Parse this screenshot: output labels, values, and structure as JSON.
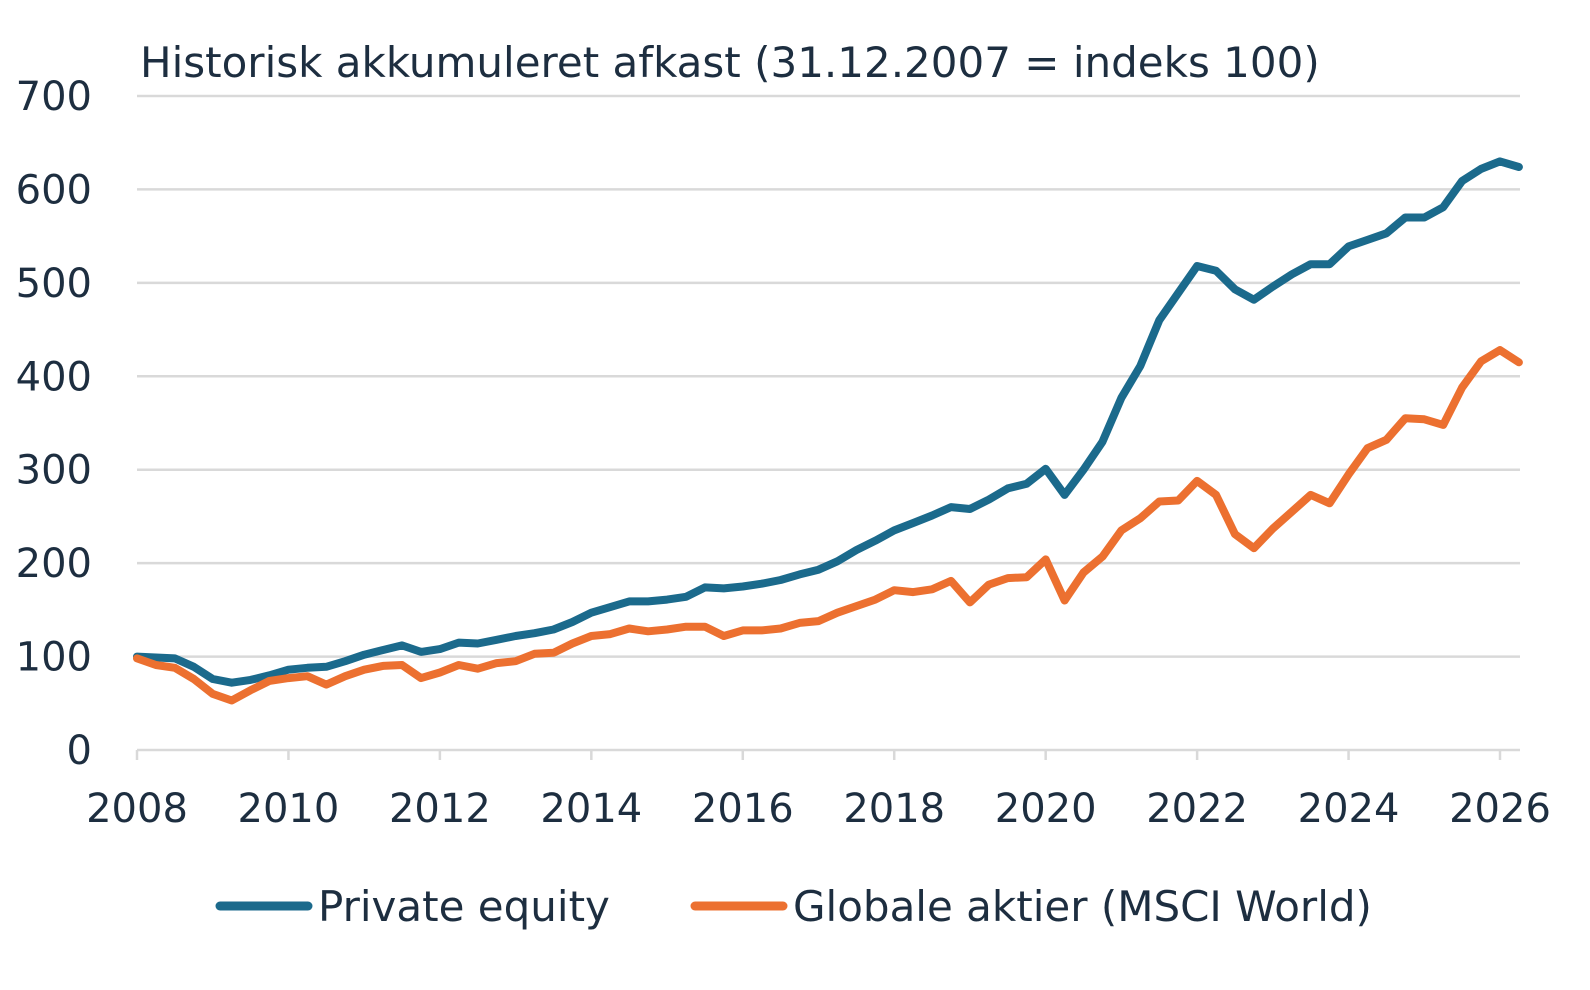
{
  "colors": {
    "private_equity": "#1b6a8c",
    "global_equities": "#ec7030",
    "text": "#1d2e40",
    "grid": "#d9d9d9"
  },
  "chart_data": {
    "type": "line",
    "title": "Historisk akkumuleret afkast (31.12.2007 = indeks 100)",
    "xlabel": "",
    "ylabel": "",
    "xlim": [
      2008,
      2026.15
    ],
    "ylim": [
      0,
      700
    ],
    "x_ticks": [
      "2008",
      "2010",
      "2012",
      "2014",
      "2016",
      "2018",
      "2020",
      "2022",
      "2024",
      "2026"
    ],
    "y_ticks": [
      "0",
      "100",
      "200",
      "300",
      "400",
      "500",
      "600",
      "700"
    ],
    "grid": true,
    "legend_position": "bottom",
    "series": [
      {
        "name": "Private equity",
        "color": "#1b6a8c",
        "points": [
          [
            2008.0,
            100
          ],
          [
            2008.25,
            99
          ],
          [
            2008.5,
            98
          ],
          [
            2008.75,
            89
          ],
          [
            2009.0,
            76
          ],
          [
            2009.25,
            72
          ],
          [
            2009.5,
            75
          ],
          [
            2009.75,
            80
          ],
          [
            2010.0,
            86
          ],
          [
            2010.25,
            88
          ],
          [
            2010.5,
            89
          ],
          [
            2010.75,
            95
          ],
          [
            2011.0,
            102
          ],
          [
            2011.25,
            107
          ],
          [
            2011.5,
            112
          ],
          [
            2011.75,
            105
          ],
          [
            2012.0,
            108
          ],
          [
            2012.25,
            115
          ],
          [
            2012.5,
            114
          ],
          [
            2012.75,
            118
          ],
          [
            2013.0,
            122
          ],
          [
            2013.25,
            125
          ],
          [
            2013.5,
            129
          ],
          [
            2013.75,
            137
          ],
          [
            2014.0,
            147
          ],
          [
            2014.25,
            153
          ],
          [
            2014.5,
            159
          ],
          [
            2014.75,
            159
          ],
          [
            2015.0,
            161
          ],
          [
            2015.25,
            164
          ],
          [
            2015.5,
            174
          ],
          [
            2015.75,
            173
          ],
          [
            2016.0,
            175
          ],
          [
            2016.25,
            178
          ],
          [
            2016.5,
            182
          ],
          [
            2016.75,
            188
          ],
          [
            2017.0,
            193
          ],
          [
            2017.25,
            202
          ],
          [
            2017.5,
            214
          ],
          [
            2017.75,
            224
          ],
          [
            2018.0,
            235
          ],
          [
            2018.25,
            243
          ],
          [
            2018.5,
            251
          ],
          [
            2018.75,
            260
          ],
          [
            2019.0,
            258
          ],
          [
            2019.25,
            268
          ],
          [
            2019.5,
            280
          ],
          [
            2019.75,
            285
          ],
          [
            2020.0,
            301
          ],
          [
            2020.25,
            273
          ],
          [
            2020.5,
            300
          ],
          [
            2020.75,
            330
          ],
          [
            2021.0,
            377
          ],
          [
            2021.25,
            411
          ],
          [
            2021.5,
            460
          ],
          [
            2021.75,
            489
          ],
          [
            2022.0,
            518
          ],
          [
            2022.25,
            513
          ],
          [
            2022.5,
            493
          ],
          [
            2022.75,
            482
          ],
          [
            2023.0,
            496
          ],
          [
            2023.25,
            509
          ],
          [
            2023.5,
            520
          ],
          [
            2023.75,
            520
          ],
          [
            2024.0,
            539
          ],
          [
            2024.25,
            546
          ],
          [
            2024.5,
            553
          ],
          [
            2024.75,
            570
          ],
          [
            2025.0,
            570
          ],
          [
            2025.25,
            581
          ],
          [
            2025.5,
            609
          ],
          [
            2025.75,
            622
          ],
          [
            2026.0,
            630
          ],
          [
            2026.25,
            624
          ]
        ]
      },
      {
        "name": "Globale aktier (MSCI World)",
        "color": "#ec7030",
        "points": [
          [
            2008.0,
            98
          ],
          [
            2008.25,
            91
          ],
          [
            2008.5,
            88
          ],
          [
            2008.75,
            76
          ],
          [
            2009.0,
            60
          ],
          [
            2009.25,
            53
          ],
          [
            2009.5,
            64
          ],
          [
            2009.75,
            74
          ],
          [
            2010.0,
            77
          ],
          [
            2010.25,
            79
          ],
          [
            2010.5,
            70
          ],
          [
            2010.75,
            79
          ],
          [
            2011.0,
            86
          ],
          [
            2011.25,
            90
          ],
          [
            2011.5,
            91
          ],
          [
            2011.75,
            77
          ],
          [
            2012.0,
            83
          ],
          [
            2012.25,
            91
          ],
          [
            2012.5,
            87
          ],
          [
            2012.75,
            93
          ],
          [
            2013.0,
            95
          ],
          [
            2013.25,
            103
          ],
          [
            2013.5,
            104
          ],
          [
            2013.75,
            114
          ],
          [
            2014.0,
            122
          ],
          [
            2014.25,
            124
          ],
          [
            2014.5,
            130
          ],
          [
            2014.75,
            127
          ],
          [
            2015.0,
            129
          ],
          [
            2015.25,
            132
          ],
          [
            2015.5,
            132
          ],
          [
            2015.75,
            122
          ],
          [
            2016.0,
            128
          ],
          [
            2016.25,
            128
          ],
          [
            2016.5,
            130
          ],
          [
            2016.75,
            136
          ],
          [
            2017.0,
            138
          ],
          [
            2017.25,
            147
          ],
          [
            2017.5,
            154
          ],
          [
            2017.75,
            161
          ],
          [
            2018.0,
            171
          ],
          [
            2018.25,
            169
          ],
          [
            2018.5,
            172
          ],
          [
            2018.75,
            181
          ],
          [
            2019.0,
            158
          ],
          [
            2019.25,
            177
          ],
          [
            2019.5,
            184
          ],
          [
            2019.75,
            185
          ],
          [
            2020.0,
            204
          ],
          [
            2020.25,
            160
          ],
          [
            2020.5,
            190
          ],
          [
            2020.75,
            207
          ],
          [
            2021.0,
            235
          ],
          [
            2021.25,
            248
          ],
          [
            2021.5,
            266
          ],
          [
            2021.75,
            267
          ],
          [
            2022.0,
            288
          ],
          [
            2022.25,
            273
          ],
          [
            2022.5,
            231
          ],
          [
            2022.75,
            216
          ],
          [
            2023.0,
            237
          ],
          [
            2023.25,
            255
          ],
          [
            2023.5,
            273
          ],
          [
            2023.75,
            264
          ],
          [
            2024.0,
            295
          ],
          [
            2024.25,
            323
          ],
          [
            2024.5,
            332
          ],
          [
            2024.75,
            355
          ],
          [
            2025.0,
            354
          ],
          [
            2025.25,
            348
          ],
          [
            2025.5,
            388
          ],
          [
            2025.75,
            416
          ],
          [
            2026.0,
            428
          ],
          [
            2026.25,
            415
          ]
        ]
      }
    ]
  }
}
